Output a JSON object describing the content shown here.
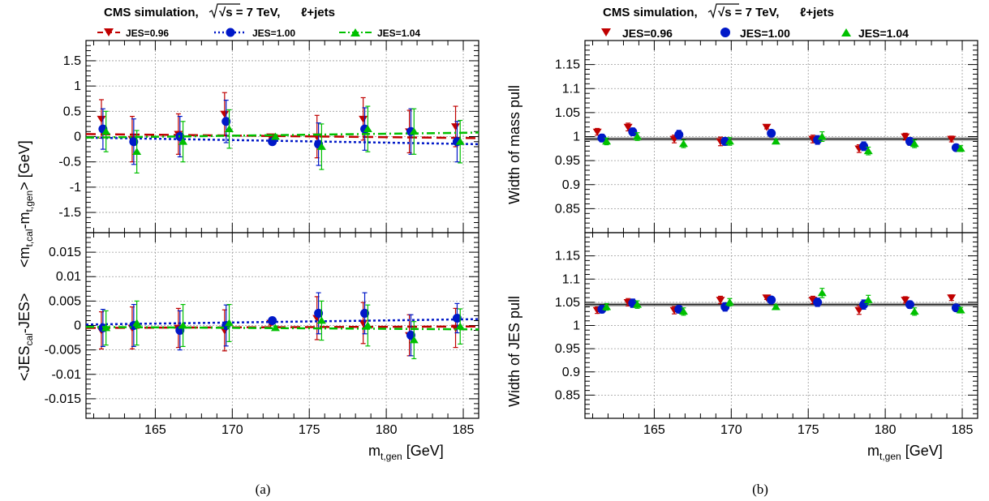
{
  "colors": {
    "jes096": "#c00000",
    "jes100": "#0018c8",
    "jes104": "#00c000",
    "grid": "#999999"
  },
  "x_ticks": [
    165,
    170,
    175,
    180,
    185
  ],
  "chart_data": [
    {
      "panel": "a-top",
      "type": "scatter",
      "title": "CMS simulation,  √s = 7 TeV, ℓ+jets",
      "ylabel": "<m_t,cal-m_t,gen> [GeV]",
      "xlim": [
        160.5,
        186
      ],
      "ylim": [
        -1.9,
        1.9
      ],
      "yticks": [
        "-1.5",
        "-1",
        "-0.5",
        "0",
        "0.5",
        "1",
        "1.5"
      ],
      "yvals": [
        -1.5,
        -1,
        -0.5,
        0,
        0.5,
        1,
        1.5
      ],
      "grid": true,
      "legend_placement": "top",
      "series": [
        {
          "name": "JES=0.96",
          "marker": "triangle-down",
          "color": "#c00000",
          "line": "dash",
          "x": [
            161.5,
            163.5,
            166.5,
            169.5,
            172.5,
            175.5,
            178.5,
            181.5,
            184.5
          ],
          "y": [
            0.35,
            -0.05,
            0.05,
            0.45,
            0.0,
            0.0,
            0.35,
            0.1,
            0.2
          ],
          "err": [
            0.38,
            0.45,
            0.4,
            0.42,
            0.04,
            0.42,
            0.42,
            0.42,
            0.4
          ],
          "fit": [
            [
              160.5,
              0.05
            ],
            [
              186,
              -0.03
            ]
          ]
        },
        {
          "name": "JES=1.00",
          "marker": "circle",
          "color": "#0018c8",
          "line": "dot",
          "x": [
            161.6,
            163.6,
            166.6,
            169.6,
            172.6,
            175.6,
            178.6,
            181.6,
            184.6
          ],
          "y": [
            0.15,
            -0.1,
            0.0,
            0.3,
            -0.1,
            -0.15,
            0.15,
            0.1,
            -0.1
          ],
          "err": [
            0.4,
            0.45,
            0.4,
            0.42,
            0.04,
            0.42,
            0.42,
            0.45,
            0.4
          ],
          "fit": [
            [
              160.5,
              -0.02
            ],
            [
              186,
              -0.15
            ]
          ]
        },
        {
          "name": "JES=1.04",
          "marker": "triangle-up",
          "color": "#00c000",
          "line": "dashdot",
          "x": [
            161.8,
            163.8,
            166.8,
            169.8,
            172.8,
            175.8,
            178.8,
            181.8,
            184.8
          ],
          "y": [
            0.1,
            -0.3,
            -0.1,
            0.15,
            0.0,
            -0.2,
            0.15,
            0.1,
            -0.1
          ],
          "err": [
            0.4,
            0.42,
            0.4,
            0.38,
            0.04,
            0.45,
            0.45,
            0.45,
            0.42
          ],
          "fit": [
            [
              160.5,
              -0.02
            ],
            [
              186,
              0.08
            ]
          ]
        }
      ]
    },
    {
      "panel": "a-bottom",
      "type": "scatter",
      "ylabel": "<JES_cal-JES>",
      "xlabel": "m_t,gen [GeV]",
      "xlim": [
        160.5,
        186
      ],
      "ylim": [
        -0.019,
        0.019
      ],
      "yticks": [
        "-0.015",
        "-0.01",
        "-0.005",
        "0",
        "0.005",
        "0.01",
        "0.015"
      ],
      "yvals": [
        -0.015,
        -0.01,
        -0.005,
        0,
        0.005,
        0.01,
        0.015
      ],
      "grid": true,
      "series": [
        {
          "name": "JES=0.96",
          "marker": "triangle-down",
          "color": "#c00000",
          "line": "dash",
          "x": [
            161.5,
            163.5,
            166.5,
            169.5,
            172.5,
            175.5,
            178.5,
            181.5,
            184.5
          ],
          "y": [
            -0.001,
            -0.0005,
            -0.0005,
            -0.001,
            0.0005,
            0.0015,
            0.0005,
            -0.002,
            -0.0005
          ],
          "err": [
            0.0038,
            0.0043,
            0.004,
            0.0042,
            0.0004,
            0.0044,
            0.0042,
            0.0042,
            0.004
          ],
          "fit": [
            [
              160.5,
              -0.0005
            ],
            [
              186,
              -0.0002
            ]
          ]
        },
        {
          "name": "JES=1.00",
          "marker": "circle",
          "color": "#0018c8",
          "line": "dot",
          "x": [
            161.6,
            163.6,
            166.6,
            169.6,
            172.6,
            175.6,
            178.6,
            181.6,
            184.6
          ],
          "y": [
            -0.0005,
            0.0,
            -0.001,
            0.0,
            0.001,
            0.0025,
            0.0025,
            -0.002,
            0.0015
          ],
          "err": [
            0.0038,
            0.0043,
            0.004,
            0.0042,
            0.0004,
            0.0042,
            0.0042,
            0.0042,
            0.003
          ],
          "fit": [
            [
              160.5,
              0.0002
            ],
            [
              186,
              0.0013
            ]
          ]
        },
        {
          "name": "JES=1.04",
          "marker": "triangle-up",
          "color": "#00c000",
          "line": "dashdot",
          "x": [
            161.8,
            163.8,
            166.8,
            169.8,
            172.8,
            175.8,
            178.8,
            181.8,
            184.8
          ],
          "y": [
            -0.0005,
            0.0005,
            0.0,
            0.0005,
            -0.0005,
            0.001,
            0.0,
            -0.003,
            -0.0002
          ],
          "err": [
            0.0035,
            0.0045,
            0.0043,
            0.0038,
            0.0004,
            0.004,
            0.0042,
            0.0038,
            0.0036
          ],
          "fit": [
            [
              160.5,
              -0.0003
            ],
            [
              186,
              -0.0008
            ]
          ]
        }
      ]
    },
    {
      "panel": "b-top",
      "type": "scatter",
      "title": "CMS simulation,  √s = 7 TeV, ℓ+jets",
      "ylabel": "Width of mass pull",
      "xlim": [
        160.5,
        186
      ],
      "ylim": [
        0.8,
        1.2
      ],
      "yticks": [
        "0.85",
        "0.9",
        "0.95",
        "1",
        "1.05",
        "1.1",
        "1.15"
      ],
      "yvals": [
        0.85,
        0.9,
        0.95,
        1,
        1.05,
        1.1,
        1.15
      ],
      "grid": true,
      "legend_placement": "top",
      "fit_line": 0.995,
      "series": [
        {
          "name": "JES=0.96",
          "marker": "triangle-down",
          "color": "#c00000",
          "x": [
            161.3,
            163.3,
            166.3,
            169.3,
            172.3,
            175.3,
            178.3,
            181.3,
            184.3
          ],
          "y": [
            1.01,
            1.02,
            0.995,
            0.99,
            1.02,
            0.995,
            0.975,
            1.0,
            0.995
          ],
          "err": [
            0.007,
            0.008,
            0.008,
            0.009,
            0.004,
            0.008,
            0.008,
            0.007,
            0.006
          ]
        },
        {
          "name": "JES=1.00",
          "marker": "circle",
          "color": "#0018c8",
          "x": [
            161.6,
            163.6,
            166.6,
            169.6,
            172.6,
            175.6,
            178.6,
            181.6,
            184.6
          ],
          "y": [
            0.997,
            1.01,
            1.004,
            0.99,
            1.007,
            0.993,
            0.98,
            0.99,
            0.977
          ],
          "err": [
            0.008,
            0.008,
            0.009,
            0.008,
            0.004,
            0.009,
            0.009,
            0.008,
            0.007
          ]
        },
        {
          "name": "JES=1.04",
          "marker": "triangle-up",
          "color": "#00c000",
          "x": [
            161.9,
            163.9,
            166.9,
            169.9,
            172.9,
            175.9,
            178.9,
            181.9,
            184.9
          ],
          "y": [
            0.99,
            1.0,
            0.985,
            0.99,
            0.99,
            1.0,
            0.97,
            0.985,
            0.975
          ],
          "err": [
            0.007,
            0.008,
            0.008,
            0.008,
            0.004,
            0.01,
            0.008,
            0.008,
            0.006
          ]
        }
      ]
    },
    {
      "panel": "b-bottom",
      "type": "scatter",
      "ylabel": "Width of JES pull",
      "xlabel": "m_t,gen [GeV]",
      "xlim": [
        160.5,
        186
      ],
      "ylim": [
        0.8,
        1.2
      ],
      "yticks": [
        "0.85",
        "0.9",
        "0.95",
        "1",
        "1.05",
        "1.1",
        "1.15"
      ],
      "yvals": [
        0.85,
        0.9,
        0.95,
        1,
        1.05,
        1.1,
        1.15
      ],
      "grid": true,
      "fit_line": 1.045,
      "series": [
        {
          "name": "JES=0.96",
          "marker": "triangle-down",
          "color": "#c00000",
          "x": [
            161.3,
            163.3,
            166.3,
            169.3,
            172.3,
            175.3,
            178.3,
            181.3,
            184.3
          ],
          "y": [
            1.033,
            1.05,
            1.033,
            1.055,
            1.06,
            1.055,
            1.033,
            1.055,
            1.06
          ],
          "err": [
            0.007,
            0.008,
            0.008,
            0.008,
            0.004,
            0.008,
            0.009,
            0.007,
            0.006
          ]
        },
        {
          "name": "JES=1.00",
          "marker": "circle",
          "color": "#0018c8",
          "x": [
            161.6,
            163.6,
            166.6,
            169.6,
            172.6,
            175.6,
            178.6,
            181.6,
            184.6
          ],
          "y": [
            1.035,
            1.048,
            1.035,
            1.04,
            1.055,
            1.05,
            1.045,
            1.045,
            1.038
          ],
          "err": [
            0.008,
            0.009,
            0.008,
            0.009,
            0.004,
            0.009,
            0.01,
            0.008,
            0.007
          ]
        },
        {
          "name": "JES=1.04",
          "marker": "triangle-up",
          "color": "#00c000",
          "x": [
            161.9,
            163.9,
            166.9,
            169.9,
            172.9,
            175.9,
            178.9,
            181.9,
            184.9
          ],
          "y": [
            1.04,
            1.045,
            1.03,
            1.05,
            1.04,
            1.07,
            1.055,
            1.03,
            1.033
          ],
          "err": [
            0.007,
            0.008,
            0.008,
            0.008,
            0.004,
            0.01,
            0.01,
            0.008,
            0.006
          ]
        }
      ]
    }
  ],
  "text": {
    "title": "CMS simulation,",
    "sqrt": "√s = 7 TeV,",
    "channel": "ℓ+jets",
    "legend": [
      "JES=0.96",
      "JES=1.00",
      "JES=1.04"
    ],
    "ylab_a_top_main": "<m",
    "ylab_a_top_sub1": "t,cal",
    "ylab_a_top_mid": "-m",
    "ylab_a_top_sub2": "t,gen",
    "ylab_a_top_end": "> [GeV]",
    "ylab_a_bot_main": "<JES",
    "ylab_a_bot_sub": "cal",
    "ylab_a_bot_end": "-JES>",
    "ylab_b_top": "Width of mass pull",
    "ylab_b_bot": "Width of JES pull",
    "xlab_main": "m",
    "xlab_sub": "t,gen",
    "xlab_unit": " [GeV]",
    "caption_a": "(a)",
    "caption_b": "(b)"
  }
}
